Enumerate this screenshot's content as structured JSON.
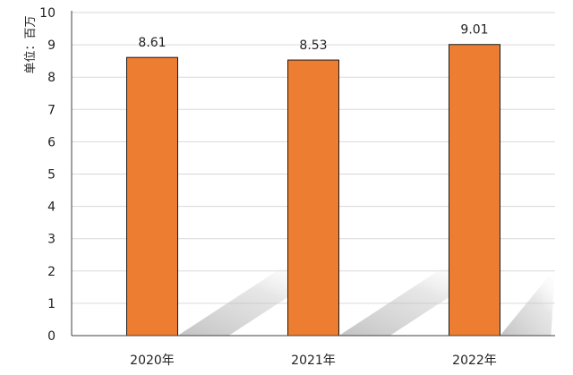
{
  "chart_data": {
    "type": "bar",
    "title": "",
    "xlabel": "",
    "ylabel": "单位：百万",
    "categories": [
      "2020年",
      "2021年",
      "2022年"
    ],
    "values": [
      8.61,
      8.53,
      9.01
    ],
    "data_labels": [
      "8.61",
      "8.53",
      "9.01"
    ],
    "ylim": [
      0,
      10
    ],
    "yticks": [
      "0",
      "1",
      "2",
      "3",
      "4",
      "5",
      "6",
      "7",
      "8",
      "9",
      "10"
    ],
    "grid": true,
    "legend": "none",
    "colors": {
      "bar_fill": "#ED7D31",
      "bar_stroke": "#1a1a1a",
      "grid": "#d9d9d9",
      "axis": "#404040",
      "shadow": "#bfbfbf"
    }
  }
}
